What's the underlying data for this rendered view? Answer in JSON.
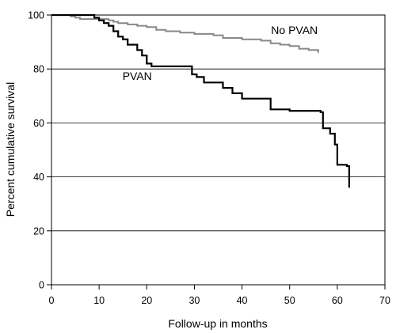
{
  "chart_data": {
    "type": "line",
    "xlabel": "Follow-up in months",
    "ylabel": "Percent cumulative survival",
    "xlim": [
      0,
      70
    ],
    "ylim": [
      0,
      100
    ],
    "x_ticks": [
      0,
      10,
      20,
      30,
      40,
      50,
      60,
      70
    ],
    "y_ticks": [
      0,
      20,
      40,
      60,
      80,
      100
    ],
    "grid": "horizontal",
    "step": true,
    "series": [
      {
        "name": "No PVAN",
        "color": "#888888",
        "x": [
          0,
          4,
          5,
          6,
          12,
          13,
          14,
          16,
          18,
          20,
          22,
          24,
          27,
          30,
          34,
          36,
          40,
          44,
          46,
          48,
          50,
          52,
          54,
          56
        ],
        "y": [
          100,
          99.5,
          99,
          98.5,
          98,
          97.5,
          97,
          96.5,
          96,
          95.5,
          94.5,
          94,
          93.5,
          93,
          92.5,
          91.5,
          91,
          90.5,
          89.5,
          89,
          88.5,
          87.5,
          87,
          86
        ]
      },
      {
        "name": "PVAN",
        "color": "#000000",
        "x": [
          0,
          9,
          10,
          11,
          12,
          13,
          14,
          15,
          16,
          18,
          19,
          20,
          21,
          29.5,
          30.5,
          32,
          36,
          38,
          40,
          46,
          50,
          56.5,
          57,
          58.5,
          59.5,
          60,
          62,
          62.5
        ],
        "y": [
          100,
          99,
          98,
          97,
          96,
          94,
          92,
          91,
          89,
          87,
          85,
          82,
          81,
          78,
          77,
          75,
          73,
          71,
          69,
          65,
          64.5,
          64,
          58,
          56,
          52,
          44.5,
          44,
          36
        ]
      }
    ],
    "annotations": [
      {
        "text": "No PVAN",
        "x": 51,
        "y": 93
      },
      {
        "text": "PVAN",
        "x": 18,
        "y": 76
      }
    ]
  }
}
